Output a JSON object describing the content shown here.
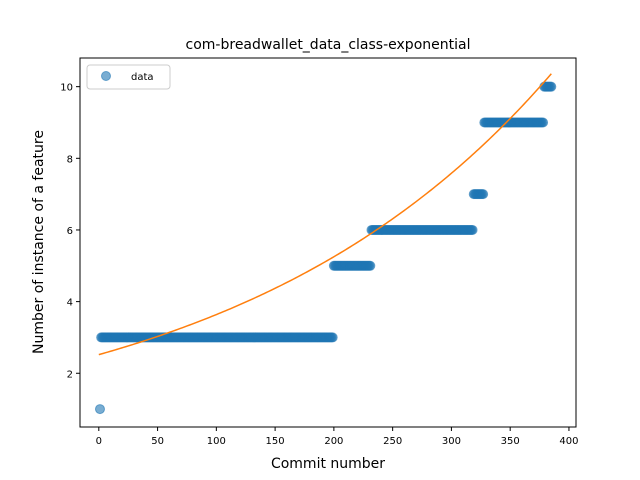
{
  "chart_data": {
    "type": "scatter",
    "title": "com-breadwallet_data_class-exponential",
    "xlabel": "Commit number",
    "ylabel": "Number of instance of a feature",
    "xlim": [
      -16,
      406
    ],
    "ylim": [
      0.5,
      10.8
    ],
    "xticks": [
      0,
      50,
      100,
      150,
      200,
      250,
      300,
      350,
      400
    ],
    "yticks": [
      2,
      4,
      6,
      8,
      10
    ],
    "grid": false,
    "legend_position": "upper-left",
    "colors": {
      "data": "#1f77b4",
      "fit": "#ff7f0e"
    },
    "series": [
      {
        "name": "data",
        "kind": "points",
        "segments": [
          {
            "x_start": 1,
            "x_end": 1,
            "y": 1
          },
          {
            "x_start": 2,
            "x_end": 199,
            "y": 3
          },
          {
            "x_start": 200,
            "x_end": 231,
            "y": 5
          },
          {
            "x_start": 232,
            "x_end": 318,
            "y": 6
          },
          {
            "x_start": 319,
            "x_end": 327,
            "y": 7
          },
          {
            "x_start": 328,
            "x_end": 378,
            "y": 9
          },
          {
            "x_start": 379,
            "x_end": 385,
            "y": 10
          }
        ]
      },
      {
        "kind": "exponential-fit",
        "x_range": [
          0,
          385
        ],
        "a": 2.52,
        "b": 0.003672
      }
    ]
  }
}
